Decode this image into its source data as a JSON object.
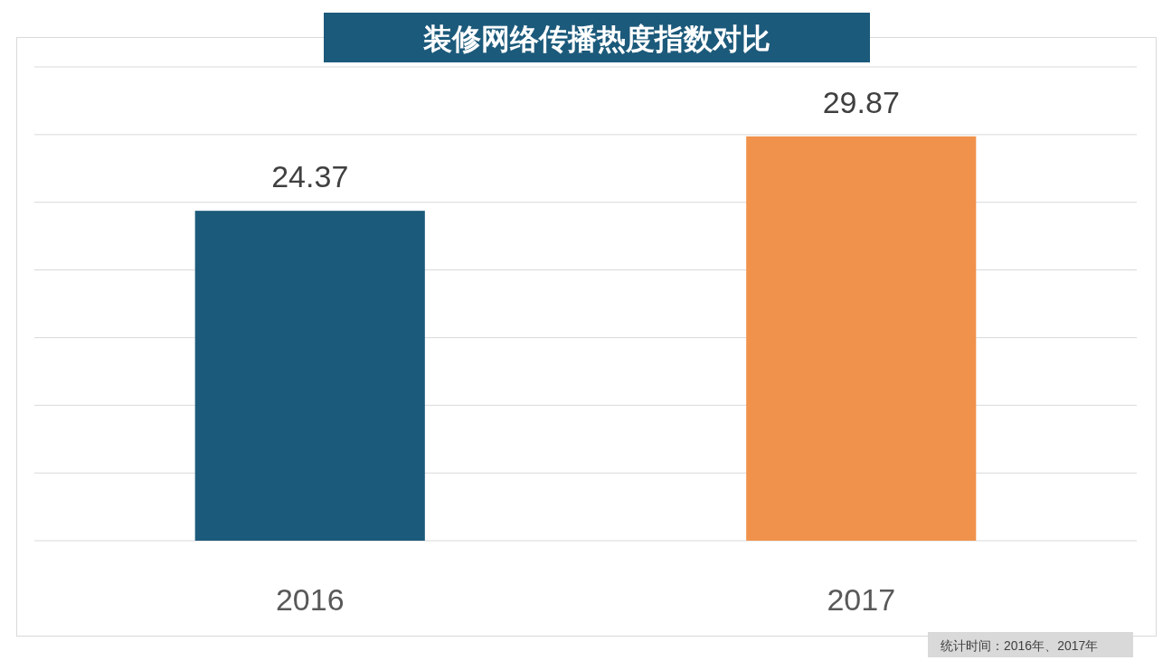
{
  "chart_data": {
    "type": "bar",
    "title": "装修网络传播热度指数对比",
    "categories": [
      "2016",
      "2017"
    ],
    "values": [
      24.37,
      29.87
    ],
    "colors": [
      "#1c5a7b",
      "#f0924c"
    ],
    "ylim": [
      0,
      35
    ],
    "yticks": [
      {
        "value": 0,
        "label": null
      },
      {
        "value": 5,
        "label": null
      },
      {
        "value": 10,
        "label": null
      },
      {
        "value": 15,
        "label": null
      },
      {
        "value": 20,
        "label": null
      },
      {
        "value": 25,
        "label": null
      },
      {
        "value": 30,
        "label": null
      },
      {
        "value": 35,
        "label": null
      }
    ],
    "grid": "y",
    "data_labels": true,
    "tick_labels": "x",
    "annotations": [
      "统计时间：2016年、2017年"
    ]
  }
}
